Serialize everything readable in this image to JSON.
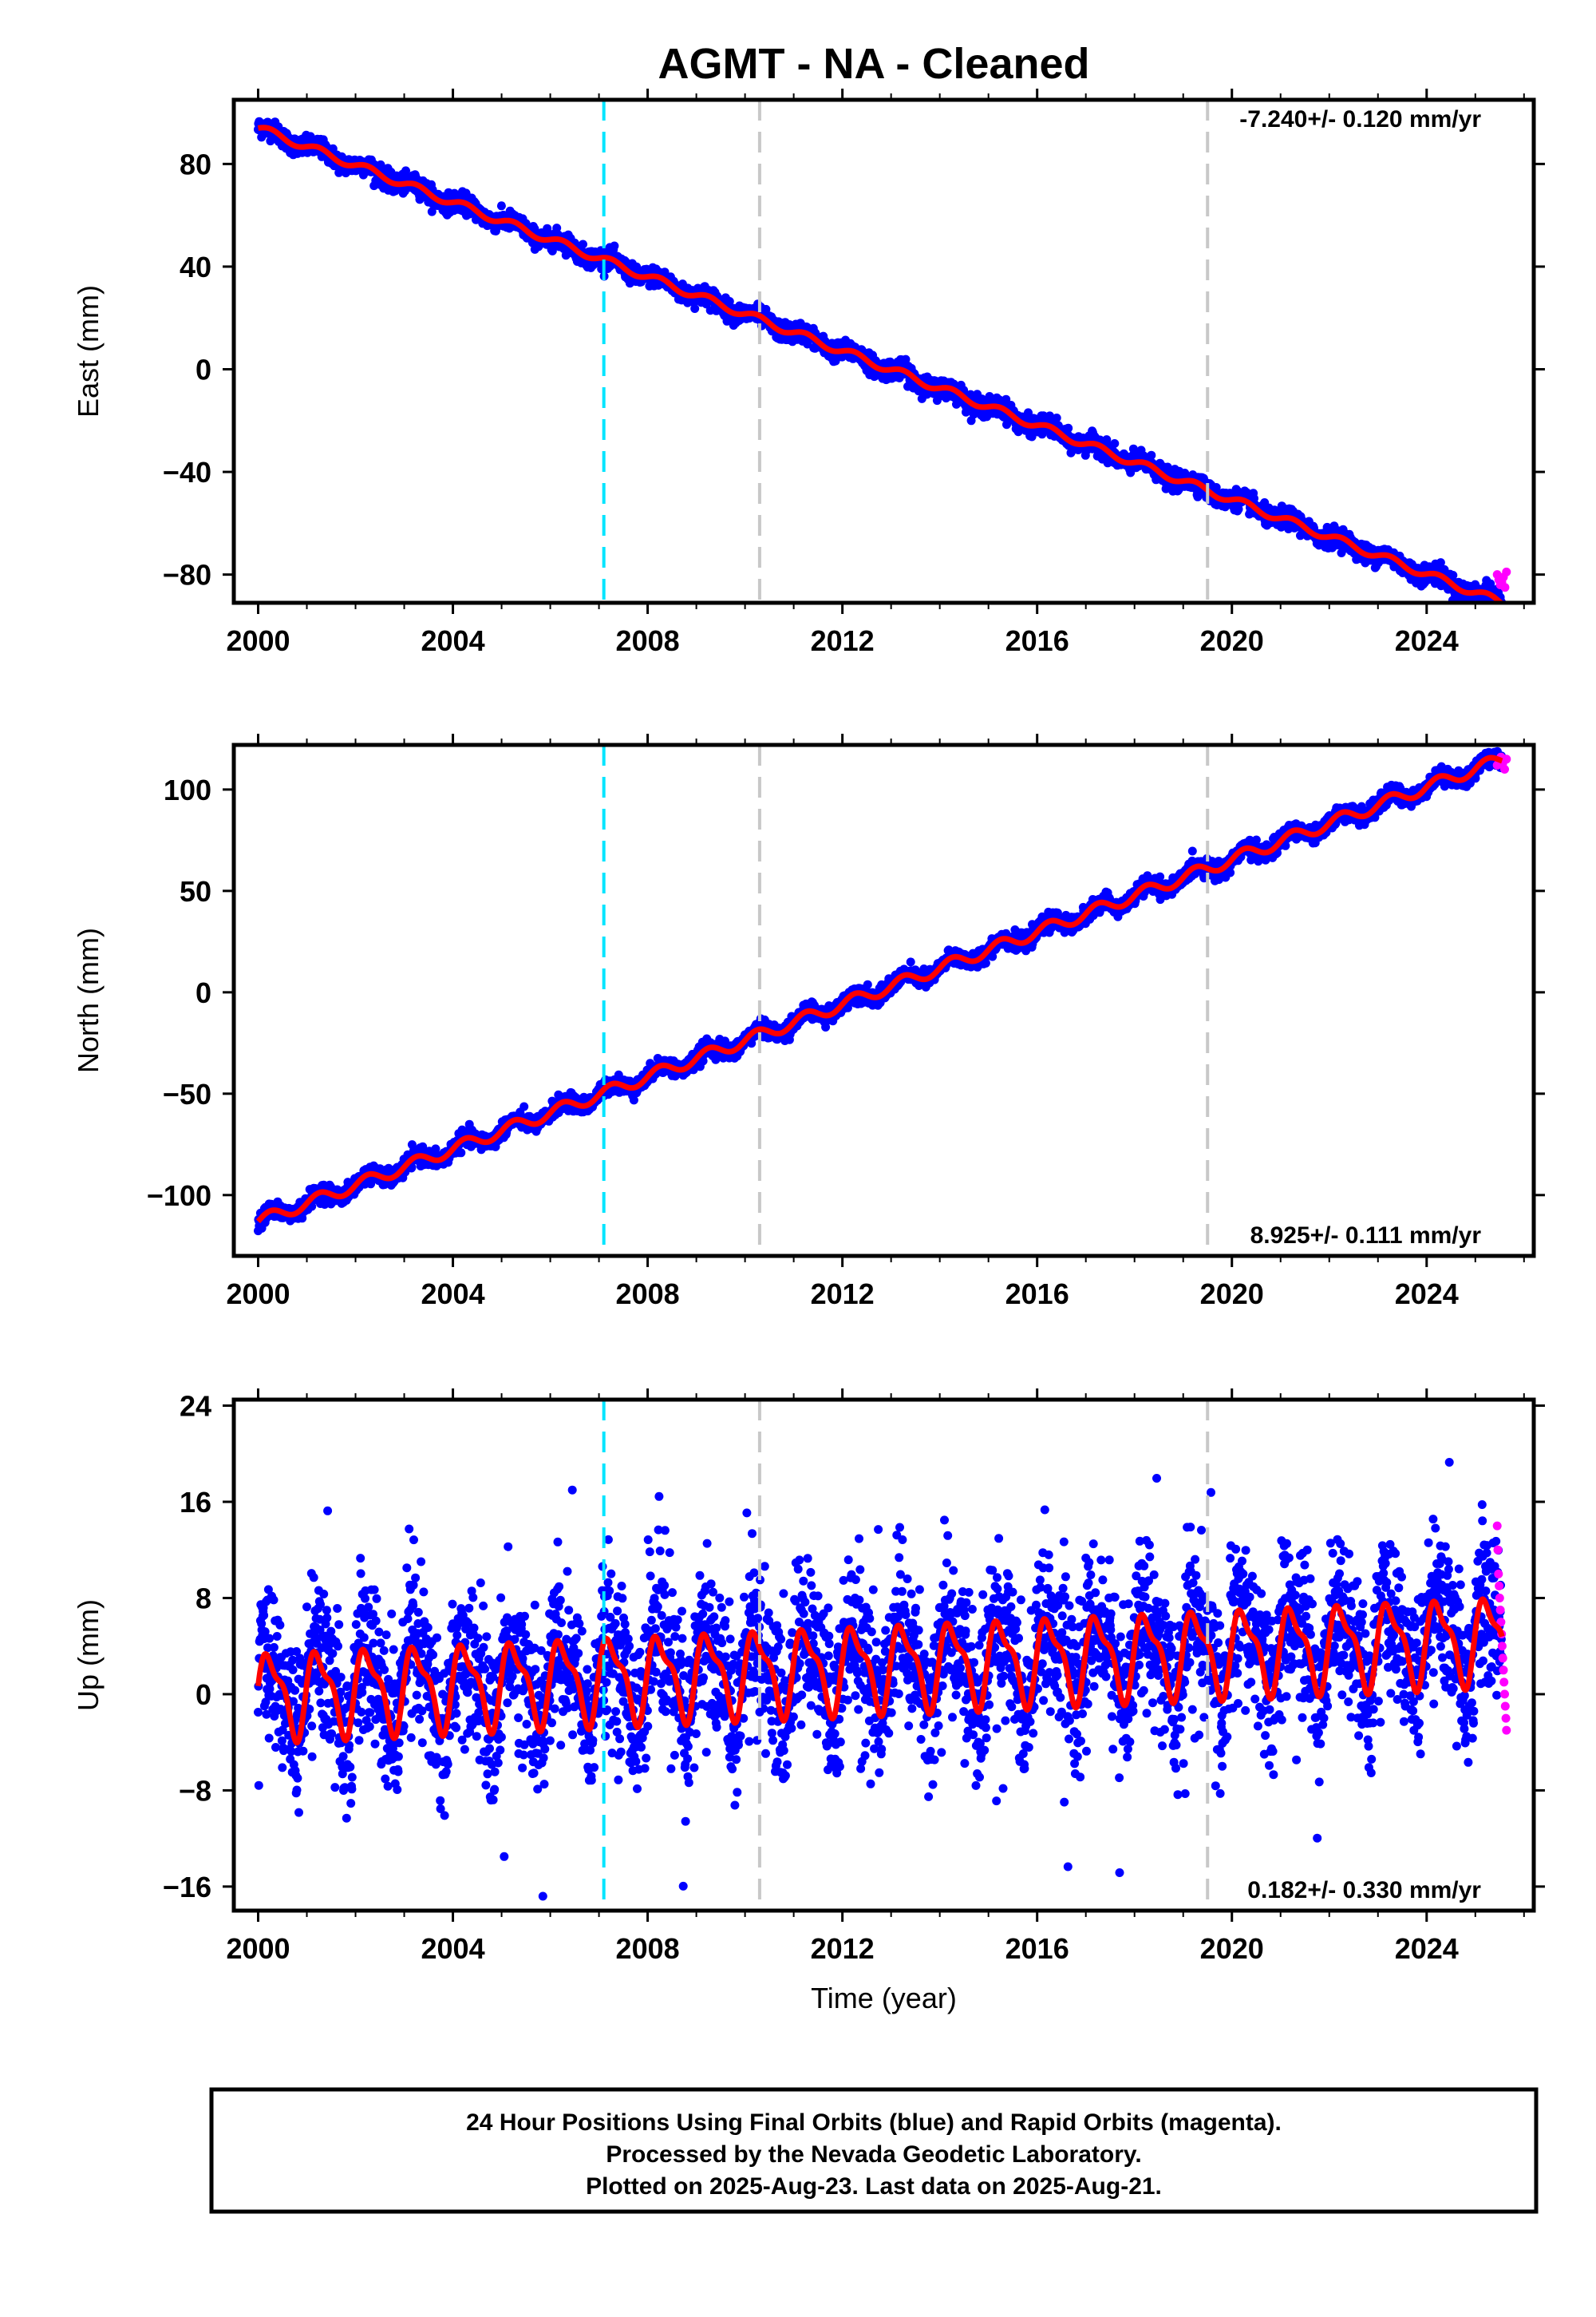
{
  "chart_data": {
    "title": "AGMT  - NA - Cleaned",
    "type": "scatter",
    "colors": {
      "final_orbits": "#0000ff",
      "rapid_orbits": "#ff00ff",
      "model_fit": "#ff0000",
      "antenna_change": "#00e5ff",
      "event": "#c8c8c8"
    },
    "vertical_markers": [
      {
        "year": 2007.1,
        "kind": "antenna_change"
      },
      {
        "year": 2010.3,
        "kind": "event"
      },
      {
        "year": 2019.5,
        "kind": "event"
      }
    ],
    "panels": [
      {
        "id": "east",
        "ylabel": "East (mm)",
        "ylim": [
          -91,
          105
        ],
        "yticks": [
          -80,
          -40,
          0,
          40,
          80
        ],
        "xlim": [
          1999.5,
          2026.2
        ],
        "xticks": [
          2000,
          2004,
          2008,
          2012,
          2016,
          2020,
          2024
        ],
        "rate": "-7.240+/- 0.120 mm/yr",
        "rate_position": "top-right",
        "trend": {
          "t0": 2000,
          "y0": 94,
          "slope": -7.24
        },
        "seasonal": {
          "amp": 1.5,
          "amp2": 0
        },
        "scatter_noise": 1.8,
        "rapid_values": [
          -80,
          -82,
          -84,
          -83,
          -81,
          -85,
          -79
        ]
      },
      {
        "id": "north",
        "ylabel": "North (mm)",
        "ylim": [
          -130,
          122
        ],
        "yticks": [
          -100,
          -50,
          0,
          50,
          100
        ],
        "xlim": [
          1999.5,
          2026.2
        ],
        "xticks": [
          2000,
          2004,
          2008,
          2012,
          2016,
          2020,
          2024
        ],
        "rate": "8.925+/- 0.111 mm/yr",
        "rate_position": "bottom-right",
        "trend": {
          "t0": 2000,
          "y0": -113,
          "slope": 8.925
        },
        "seasonal": {
          "amp": 3.0,
          "amp2": 0
        },
        "scatter_noise": 2.0,
        "rapid_values": [
          112,
          114,
          116,
          113,
          110,
          115
        ]
      },
      {
        "id": "up",
        "ylabel": "Up (mm)",
        "xlabel": "Time (year)",
        "ylim": [
          -18,
          24.5
        ],
        "yticks": [
          -16,
          -8,
          0,
          8,
          16,
          24
        ],
        "xlim": [
          1999.5,
          2026.2
        ],
        "xticks": [
          2000,
          2004,
          2008,
          2012,
          2016,
          2020,
          2024
        ],
        "rate": "0.182+/- 0.330 mm/yr",
        "rate_position": "bottom-right",
        "trend": {
          "t0": 2000,
          "y0": 0,
          "slope": 0.182
        },
        "seasonal": {
          "amp": 3.2,
          "amp2": 1.2
        },
        "scatter_noise": 3.2,
        "rapid_values": [
          14,
          12,
          10,
          9,
          8,
          7,
          6,
          5,
          4,
          3,
          2,
          1,
          0,
          -1,
          -2,
          -3
        ]
      }
    ],
    "data_range": [
      2000.0,
      2025.55
    ],
    "rapid_range": [
      2025.45,
      2025.64
    ]
  },
  "footer": {
    "line1": "24 Hour Positions Using Final Orbits (blue) and Rapid Orbits (magenta).",
    "line2": "Processed by the Nevada Geodetic Laboratory.",
    "line3": "Plotted on 2025-Aug-23. Last data on 2025-Aug-21."
  }
}
